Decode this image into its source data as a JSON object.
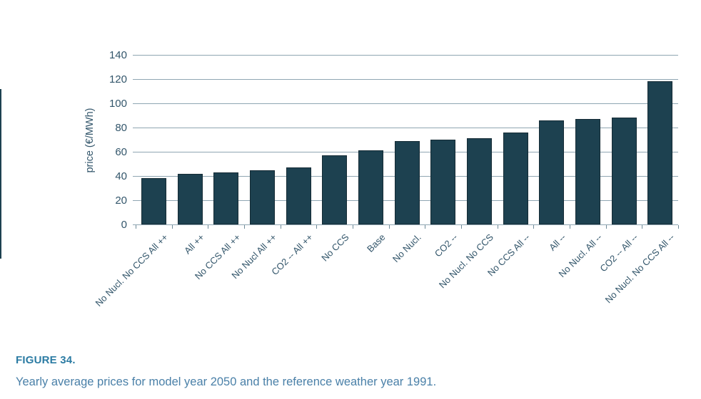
{
  "figure": {
    "label": "FIGURE 34.",
    "caption": "Yearly average prices for model year 2050 and the reference weather year 1991."
  },
  "chart_data": {
    "type": "bar",
    "title": "",
    "xlabel": "",
    "ylabel": "price (€/MWh)",
    "ylim": [
      0,
      140
    ],
    "ytick_step": 20,
    "yticks": [
      140,
      120,
      100,
      80,
      60,
      40,
      20,
      0
    ],
    "grid": true,
    "legend": "none",
    "categories": [
      "No Nucl. No CCS All ++",
      "All ++",
      "No CCS All ++",
      "No Nucl All ++",
      "CO2 -- All ++",
      "No CCS",
      "Base",
      "No Nucl.",
      "CO2 --",
      "No Nucl. No CCS",
      "No CCS All --",
      "All --",
      "No Nucl. All --",
      "CO2 -- All --",
      "No Nucl. No CCS All --"
    ],
    "values": [
      38,
      42,
      43,
      45,
      47,
      57,
      61,
      69,
      70,
      71,
      76,
      86,
      87,
      88,
      118
    ],
    "colors": {
      "bar_fill": "#1d4150",
      "bar_border": "#152b35",
      "gridline": "#8fa6b2",
      "tick_label": "#33566b"
    }
  }
}
